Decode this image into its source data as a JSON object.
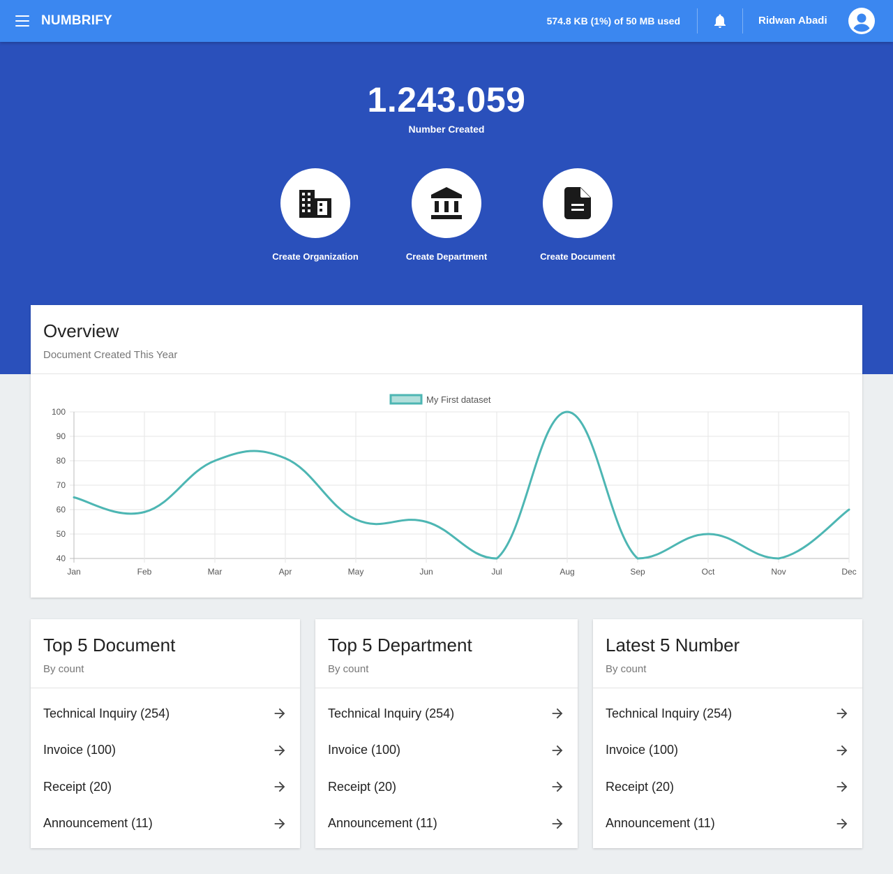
{
  "topbar": {
    "brand": "NUMBRIFY",
    "storage": "574.8 KB (1%) of 50 MB used",
    "username": "Ridwan Abadi"
  },
  "hero": {
    "count": "1.243.059",
    "count_label": "Number Created",
    "actions": [
      {
        "label": "Create Organization",
        "icon": "building-icon"
      },
      {
        "label": "Create Department",
        "icon": "bank-icon"
      },
      {
        "label": "Create Document",
        "icon": "document-icon"
      }
    ]
  },
  "overview": {
    "title": "Overview",
    "subtitle": "Document Created This Year"
  },
  "chart_data": {
    "type": "line",
    "categories": [
      "Jan",
      "Feb",
      "Mar",
      "Apr",
      "May",
      "Jun",
      "Jul",
      "Aug",
      "Sep",
      "Oct",
      "Nov",
      "Dec"
    ],
    "series": [
      {
        "name": "My First dataset",
        "values": [
          65,
          59,
          80,
          81,
          56,
          55,
          40,
          100,
          40,
          50,
          40,
          60
        ],
        "color": "#4db6b3",
        "fill": "#b2dfdb"
      }
    ],
    "ylim": [
      40,
      100
    ],
    "yticks": [
      100,
      90,
      80,
      70,
      60,
      50,
      40
    ],
    "grid": true,
    "legend": "top-center",
    "xlabel": "",
    "ylabel": ""
  },
  "cards": [
    {
      "title": "Top 5 Document",
      "subtitle": "By count",
      "items": [
        "Technical Inquiry (254)",
        "Invoice (100)",
        "Receipt (20)",
        "Announcement (11)"
      ]
    },
    {
      "title": "Top 5 Department",
      "subtitle": "By count",
      "items": [
        "Technical Inquiry (254)",
        "Invoice (100)",
        "Receipt (20)",
        "Announcement (11)"
      ]
    },
    {
      "title": "Latest 5 Number",
      "subtitle": "By count",
      "items": [
        "Technical Inquiry (254)",
        "Invoice (100)",
        "Receipt (20)",
        "Announcement (11)"
      ]
    }
  ],
  "colors": {
    "topbar": "#3b87f0",
    "hero": "#2a50bb",
    "page_bg": "#eceff1",
    "line": "#4db6b3"
  }
}
